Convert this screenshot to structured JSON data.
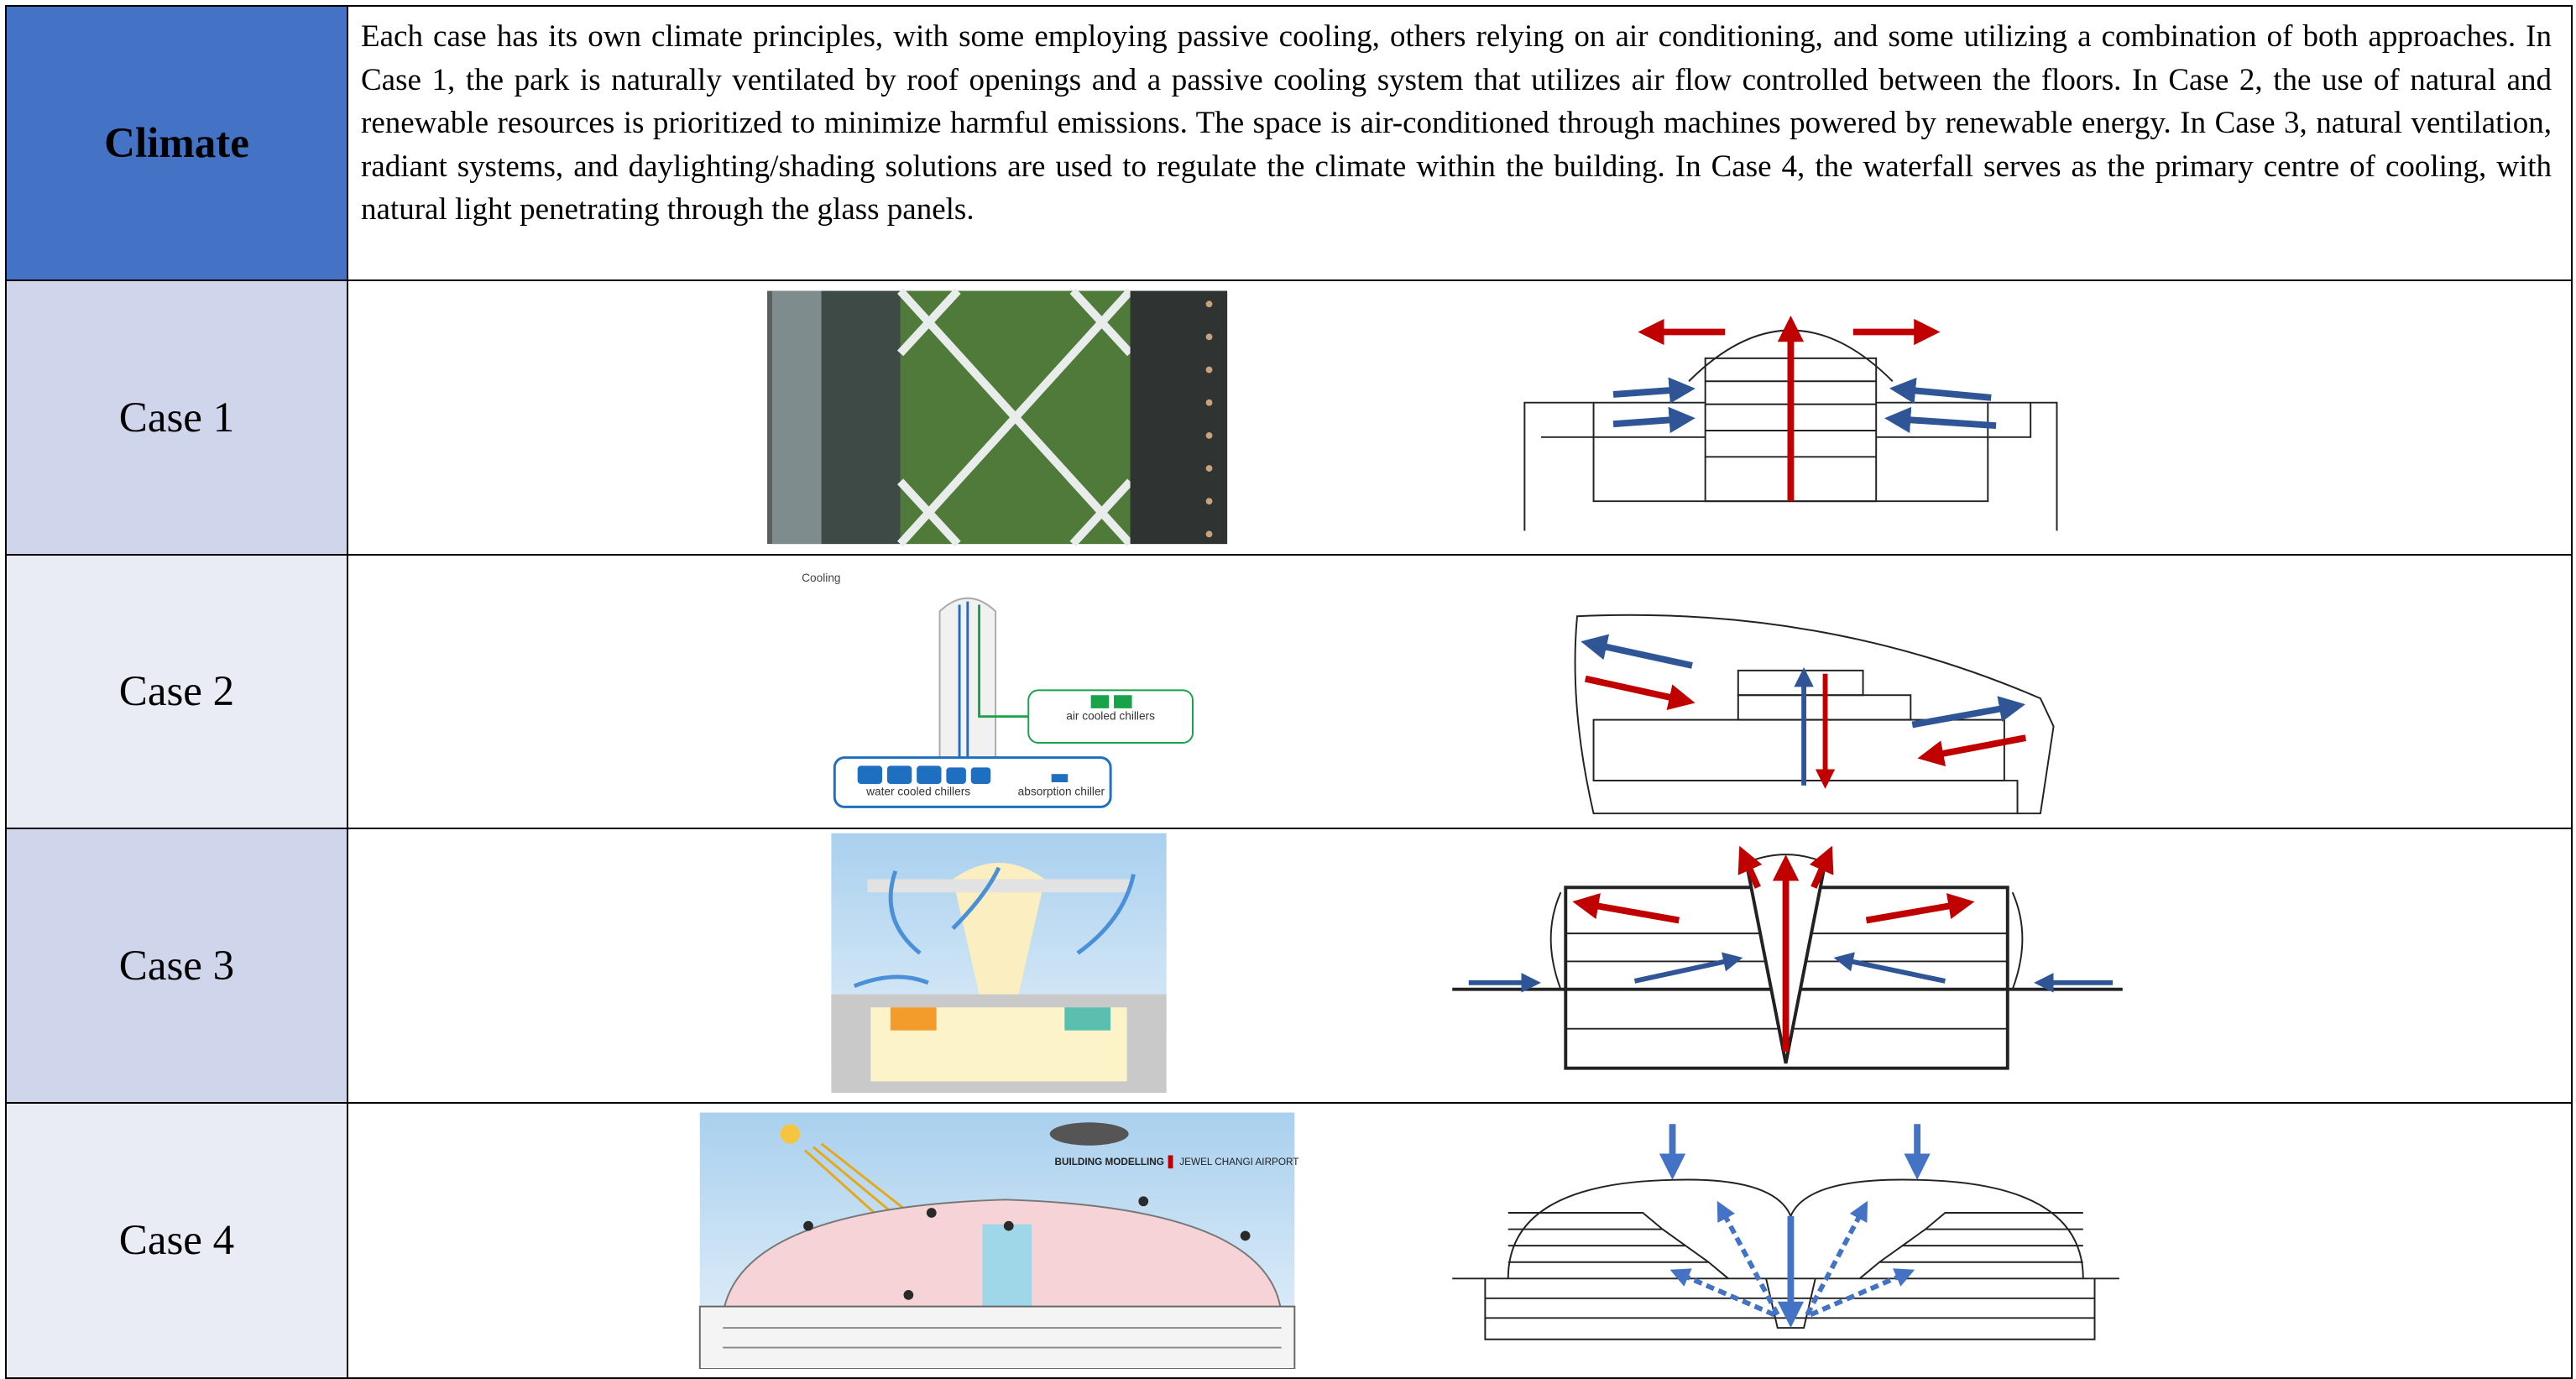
{
  "table": {
    "header": {
      "label": "Climate",
      "text": "Each case has its own climate principles, with some employing passive cooling, others relying on air conditioning, and some utilizing a combination of both approaches. In Case 1, the park is naturally ventilated by roof openings and a passive cooling system that utilizes air flow controlled between the floors. In Case 2, the use of natural and renewable resources is prioritized to minimize harmful emissions. The space is air-conditioned through machines powered by renewable energy. In Case 3, natural ventilation, radiant systems, and daylighting/shading solutions are used to regulate the climate within the building. In Case 4, the waterfall serves as the primary centre of cooling, with natural light penetrating through the glass panels."
    },
    "rows": [
      {
        "label": "Case 1"
      },
      {
        "label": "Case 2",
        "image_labels": [
          "Cooling",
          "air cooled chillers",
          "water cooled chillers",
          "absorption chiller"
        ]
      },
      {
        "label": "Case 3"
      },
      {
        "label": "Case 4",
        "image_labels": [
          "BUILDING MODELLING",
          "JEWEL CHANGI AIRPORT"
        ]
      }
    ]
  }
}
